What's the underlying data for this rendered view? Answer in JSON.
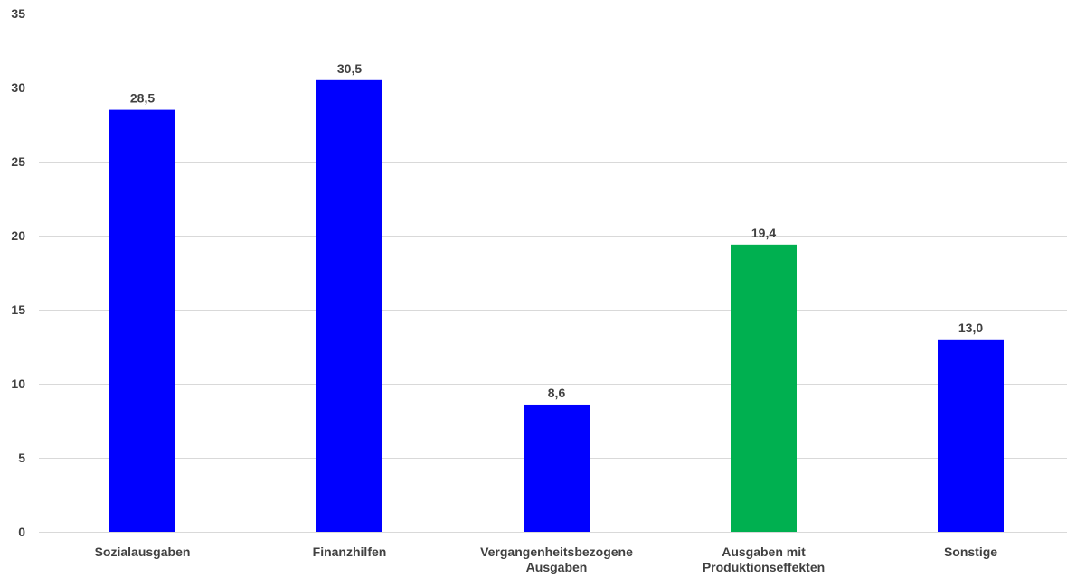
{
  "chart_data": {
    "type": "bar",
    "categories": [
      [
        "Sozialausgaben"
      ],
      [
        "Finanzhilfen"
      ],
      [
        "Vergangenheitsbezogene",
        "Ausgaben"
      ],
      [
        "Ausgaben mit",
        "Produktionseffekten"
      ],
      [
        "Sonstige"
      ]
    ],
    "values": [
      28.5,
      30.5,
      8.6,
      19.4,
      13.0
    ],
    "data_labels": [
      "28,5",
      "30,5",
      "8,6",
      "19,4",
      "13,0"
    ],
    "bar_colors": [
      "#0000ff",
      "#0000ff",
      "#0000ff",
      "#00b050",
      "#0000ff"
    ],
    "ylim": [
      0,
      35
    ],
    "yticks": [
      0,
      5,
      10,
      15,
      20,
      25,
      30,
      35
    ],
    "title": "",
    "xlabel": "",
    "ylabel": "",
    "grid": true,
    "legend": "none"
  }
}
